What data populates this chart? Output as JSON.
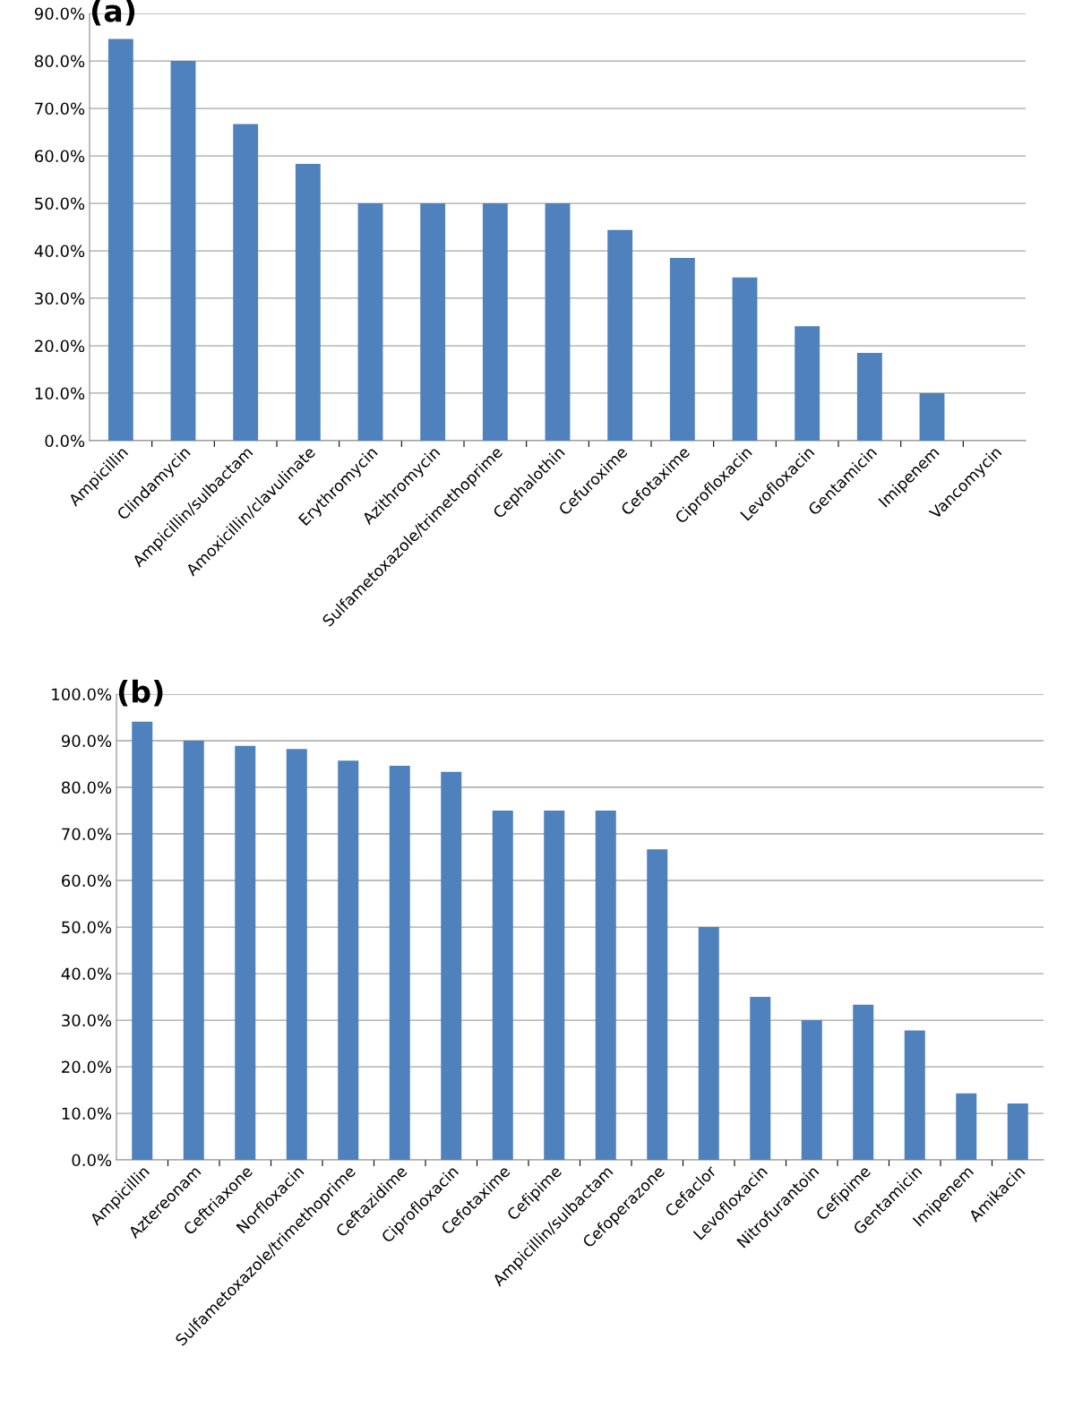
{
  "chart_data": [
    {
      "type": "bar",
      "title": "(a)",
      "categories": [
        "Ampicillin",
        "Clindamycin",
        "Ampicillin/sulbactam",
        "Amoxicillin/clavulinate",
        "Erythromycin",
        "Azithromycin",
        "Sulfametoxazole/trimethoprime",
        "Cephalothin",
        "Cefuroxime",
        "Cefotaxime",
        "Ciprofloxacin",
        "Levofloxacin",
        "Gentamicin",
        "Imipenem",
        "Vancomycin"
      ],
      "values": [
        84.6,
        80.0,
        66.7,
        58.3,
        50.0,
        50.0,
        50.0,
        50.0,
        44.4,
        38.5,
        34.4,
        24.1,
        18.5,
        10.0,
        0.0
      ],
      "color": "#4f81bd",
      "ylim": [
        0,
        90
      ],
      "yticks": [
        {
          "value": 0,
          "label": "0.0%"
        },
        {
          "value": 10,
          "label": "10.0%"
        },
        {
          "value": 20,
          "label": "20.0%"
        },
        {
          "value": 30,
          "label": "30.0%"
        },
        {
          "value": 40,
          "label": "40.0%"
        },
        {
          "value": 50,
          "label": "50.0%"
        },
        {
          "value": 60,
          "label": "60.0%"
        },
        {
          "value": 70,
          "label": "70.0%"
        },
        {
          "value": 80,
          "label": "80.0%"
        },
        {
          "value": 90,
          "label": "90.0%"
        }
      ],
      "grid": "y"
    },
    {
      "type": "bar",
      "title": "(b)",
      "categories": [
        "Ampicillin",
        "Aztereonam",
        "Ceftriaxone",
        "Norfloxacin",
        "Sulfametoxazole/trimethoprime",
        "Ceftazidime",
        "Ciprofloxacin",
        "Cefotaxime",
        "Cefipime",
        "Ampicillin/sulbactam",
        "Cefoperazone",
        "Cefaclor",
        "Levofloxacin",
        "Nitrofurantoin",
        "Cefipime",
        "Gentamicin",
        "Imipenem",
        "Amikacin"
      ],
      "values": [
        94.1,
        90.0,
        88.9,
        88.2,
        85.7,
        84.6,
        83.3,
        75.0,
        75.0,
        75.0,
        66.7,
        50.0,
        35.0,
        30.0,
        33.3,
        27.8,
        14.3,
        12.1
      ],
      "color": "#4f81bd",
      "ylim": [
        0,
        100
      ],
      "yticks": [
        {
          "value": 0,
          "label": "0.0%"
        },
        {
          "value": 10,
          "label": "10.0%"
        },
        {
          "value": 20,
          "label": "20.0%"
        },
        {
          "value": 30,
          "label": "30.0%"
        },
        {
          "value": 40,
          "label": "40.0%"
        },
        {
          "value": 50,
          "label": "50.0%"
        },
        {
          "value": 60,
          "label": "60.0%"
        },
        {
          "value": 70,
          "label": "70.0%"
        },
        {
          "value": 80,
          "label": "80.0%"
        },
        {
          "value": 90,
          "label": "90.0%"
        },
        {
          "value": 100,
          "label": "100.0%"
        }
      ],
      "grid": "y"
    }
  ]
}
